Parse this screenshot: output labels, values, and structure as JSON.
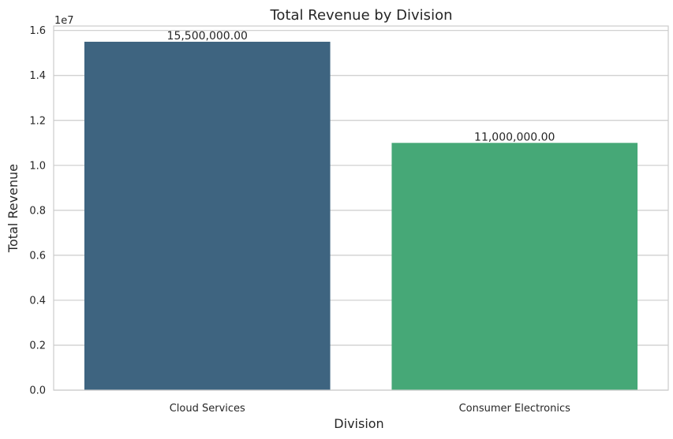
{
  "chart_data": {
    "type": "bar",
    "title": "Total Revenue by Division",
    "xlabel": "Division",
    "ylabel": "Total Revenue",
    "y_offset_label": "1e7",
    "categories": [
      "Cloud Services",
      "Consumer Electronics"
    ],
    "values": [
      15500000,
      11000000
    ],
    "data_labels": [
      "15,500,000.00",
      "11,000,000.00"
    ],
    "colors": [
      "#3e6480",
      "#46a877"
    ],
    "ylim": [
      0,
      16200000
    ],
    "y_ticks": [
      0,
      2000000,
      4000000,
      6000000,
      8000000,
      10000000,
      12000000,
      14000000,
      16000000
    ],
    "y_tick_labels": [
      "0.0",
      "0.2",
      "0.4",
      "0.6",
      "0.8",
      "1.0",
      "1.2",
      "1.4",
      "1.6"
    ],
    "grid": true,
    "legend": "none"
  }
}
